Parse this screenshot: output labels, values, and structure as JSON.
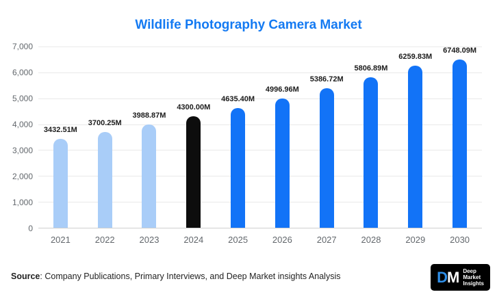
{
  "chart_data": {
    "type": "bar",
    "title": "Wildlife Photography Camera Market",
    "categories": [
      "2021",
      "2022",
      "2023",
      "2024",
      "2025",
      "2026",
      "2027",
      "2028",
      "2029",
      "2030"
    ],
    "values": [
      3432.51,
      3700.25,
      3988.87,
      4300.0,
      4635.4,
      4996.96,
      5386.72,
      5806.89,
      6259.83,
      6748.09
    ],
    "labels": [
      "3432.51M",
      "3700.25M",
      "3988.87M",
      "4300.00M",
      "4635.40M",
      "4996.96M",
      "5386.72M",
      "5806.89M",
      "6259.83M",
      "6748.09M"
    ],
    "bar_colors": [
      "#a9cdf8",
      "#a9cdf8",
      "#a9cdf8",
      "#0d0d0d",
      "#1273f7",
      "#1273f7",
      "#1273f7",
      "#1273f7",
      "#1273f7",
      "#1273f7"
    ],
    "xlabel": "",
    "ylabel": "",
    "ylim": [
      0,
      7000
    ],
    "yticks": [
      0,
      1000,
      2000,
      3000,
      4000,
      5000,
      6000,
      7000
    ],
    "ytick_labels": [
      "0",
      "1,000",
      "2,000",
      "3,000",
      "4,000",
      "5,000",
      "6,000",
      "7,000"
    ],
    "grid": "horizontal",
    "legend": "none",
    "title_color": "#147af2"
  },
  "footer": {
    "source_label": "Source",
    "source_text": ": Company Publications, Primary Interviews, and Deep Market insights Analysis"
  },
  "logo": {
    "d": "D",
    "m": "M",
    "lines": [
      "Deep",
      "Market",
      "Insights"
    ]
  }
}
